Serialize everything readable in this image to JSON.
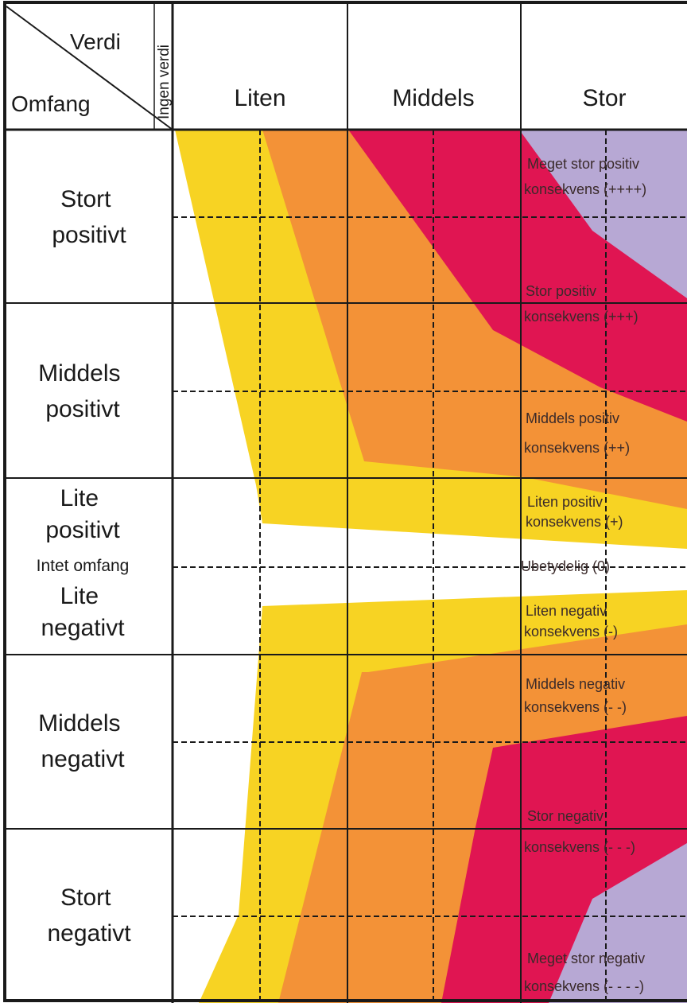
{
  "header": {
    "corner_top": "Verdi",
    "corner_bottom": "Omfang",
    "corner_vertical": "Ingen verdi",
    "columns": [
      "Liten",
      "Middels",
      "Stor"
    ]
  },
  "rows": {
    "stort_positivt": [
      "Stort",
      "positivt"
    ],
    "middels_positivt": [
      "Middels",
      "positivt"
    ],
    "lite_positivt": [
      "Lite",
      "positivt"
    ],
    "intet_omfang": "Intet omfang",
    "lite_negativt": [
      "Lite",
      "negativt"
    ],
    "middels_negativt": [
      "Middels",
      "negativt"
    ],
    "stort_negativt": [
      "Stort",
      "negativt"
    ]
  },
  "zones": {
    "meget_stor_positiv": [
      "Meget stor positiv",
      "konsekvens (++++)"
    ],
    "stor_positiv": [
      "Stor positiv",
      "konsekvens (+++)"
    ],
    "middels_positiv": [
      "Middels positiv",
      "konsekvens (++)"
    ],
    "liten_positiv": [
      "Liten positiv",
      "konsekvens (+)"
    ],
    "ubetydelig": "Ubetydelig (0)",
    "liten_negativ": [
      "Liten negativ",
      "konsekvens (-)"
    ],
    "middels_negativ": [
      "Middels negativ",
      "konsekvens (- -)"
    ],
    "stor_negativ": [
      "Stor negativ",
      "konsekvens (- - -)"
    ],
    "meget_stor_negativ": [
      "Meget stor negativ",
      "konsekvens (- - - -)"
    ]
  },
  "colors": {
    "liten": "#f7d323",
    "middels": "#f39237",
    "stor": "#e01552",
    "meget_stor": "#b7a8d4",
    "grid": "#1a1a1a"
  }
}
